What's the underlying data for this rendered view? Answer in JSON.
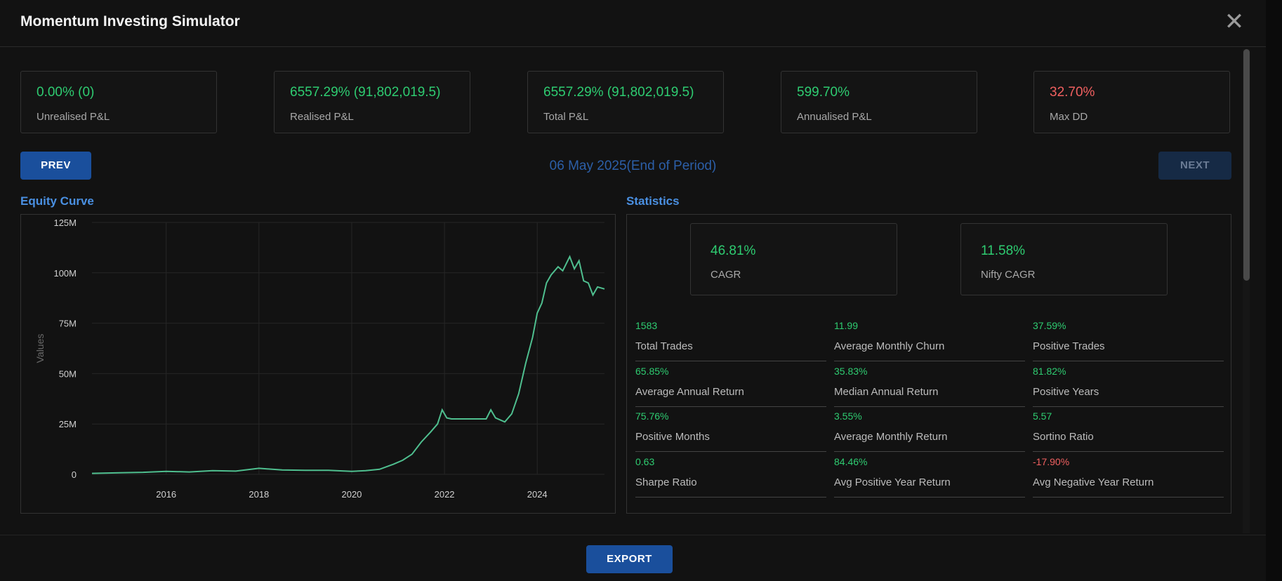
{
  "app": {
    "title": "Momentum Investing Simulator"
  },
  "summary": [
    {
      "value": "0.00% (0)",
      "label": "Unrealised P&L",
      "negative": false
    },
    {
      "value": "6557.29% (91,802,019.5)",
      "label": "Realised P&L",
      "negative": false
    },
    {
      "value": "6557.29% (91,802,019.5)",
      "label": "Total P&L",
      "negative": false
    },
    {
      "value": "599.70%",
      "label": "Annualised P&L",
      "negative": false
    },
    {
      "value": "32.70%",
      "label": "Max DD",
      "negative": true
    }
  ],
  "nav": {
    "prev_label": "PREV",
    "next_label": "NEXT",
    "period": "06 May 2025(End of Period)"
  },
  "equity": {
    "section_title": "Equity Curve"
  },
  "statistics": {
    "section_title": "Statistics",
    "cagr": {
      "value": "46.81%",
      "label": "CAGR"
    },
    "nifty_cagr": {
      "value": "11.58%",
      "label": "Nifty CAGR"
    },
    "metrics": [
      {
        "value": "1583",
        "label": "Total Trades"
      },
      {
        "value": "11.99",
        "label": "Average Monthly Churn"
      },
      {
        "value": "37.59%",
        "label": "Positive Trades"
      },
      {
        "value": "65.85%",
        "label": "Average Annual Return"
      },
      {
        "value": "35.83%",
        "label": "Median Annual Return"
      },
      {
        "value": "81.82%",
        "label": "Positive Years"
      },
      {
        "value": "75.76%",
        "label": "Positive Months"
      },
      {
        "value": "3.55%",
        "label": "Average Monthly Return"
      },
      {
        "value": "5.57",
        "label": "Sortino Ratio"
      },
      {
        "value": "0.63",
        "label": "Sharpe Ratio"
      },
      {
        "value": "84.46%",
        "label": "Avg Positive Year Return"
      },
      {
        "value": "-17.90%",
        "label": "Avg Negative Year Return",
        "negative": true
      }
    ]
  },
  "footer": {
    "export_label": "EXPORT"
  },
  "icons": {
    "close": "close-icon"
  },
  "colors": {
    "positive": "#2ecc71",
    "negative": "#f06060",
    "accent": "#1a4f9c",
    "line": "#4fbf8f"
  },
  "chart_data": {
    "type": "line",
    "title": "",
    "xlabel": "",
    "ylabel": "Values",
    "xlim": [
      2014.4,
      2025.45
    ],
    "ylim": [
      0,
      125
    ],
    "y_unit": "M",
    "x_ticks": [
      2016,
      2018,
      2020,
      2022,
      2024
    ],
    "x_tick_labels": [
      "2016",
      "2018",
      "2020",
      "2022",
      "2024"
    ],
    "y_ticks": [
      0,
      25,
      50,
      75,
      100,
      125
    ],
    "y_tick_labels": [
      "0",
      "25M",
      "50M",
      "75M",
      "100M",
      "125M"
    ],
    "grid": true,
    "series": [
      {
        "x": [
          2014.4,
          2015.0,
          2015.5,
          2016.0,
          2016.5,
          2017.0,
          2017.5,
          2018.0,
          2018.5,
          2019.0,
          2019.5,
          2020.0,
          2020.3,
          2020.6,
          2020.9,
          2021.1,
          2021.3,
          2021.5,
          2021.7,
          2021.85,
          2021.95,
          2022.05,
          2022.15,
          2022.4,
          2022.7,
          2022.9,
          2023.0,
          2023.1,
          2023.3,
          2023.45,
          2023.6,
          2023.75,
          2023.9,
          2024.0,
          2024.1,
          2024.2,
          2024.3,
          2024.45,
          2024.55,
          2024.7,
          2024.8,
          2024.9,
          2025.0,
          2025.1,
          2025.2,
          2025.3,
          2025.45
        ],
        "y": [
          0.5,
          0.8,
          1.0,
          1.5,
          1.2,
          1.8,
          1.6,
          3.0,
          2.2,
          2.0,
          2.0,
          1.5,
          1.8,
          2.5,
          5.0,
          7.0,
          10.0,
          16.0,
          21.0,
          25.0,
          32.0,
          28.0,
          27.5,
          27.5,
          27.5,
          27.5,
          32.0,
          28.0,
          26.0,
          30.0,
          40.0,
          55.0,
          68.0,
          80.0,
          85.0,
          95.0,
          99.0,
          103.0,
          101.0,
          108.0,
          102.0,
          106.0,
          96.0,
          95.0,
          89.0,
          93.0,
          92.0
        ]
      }
    ]
  }
}
